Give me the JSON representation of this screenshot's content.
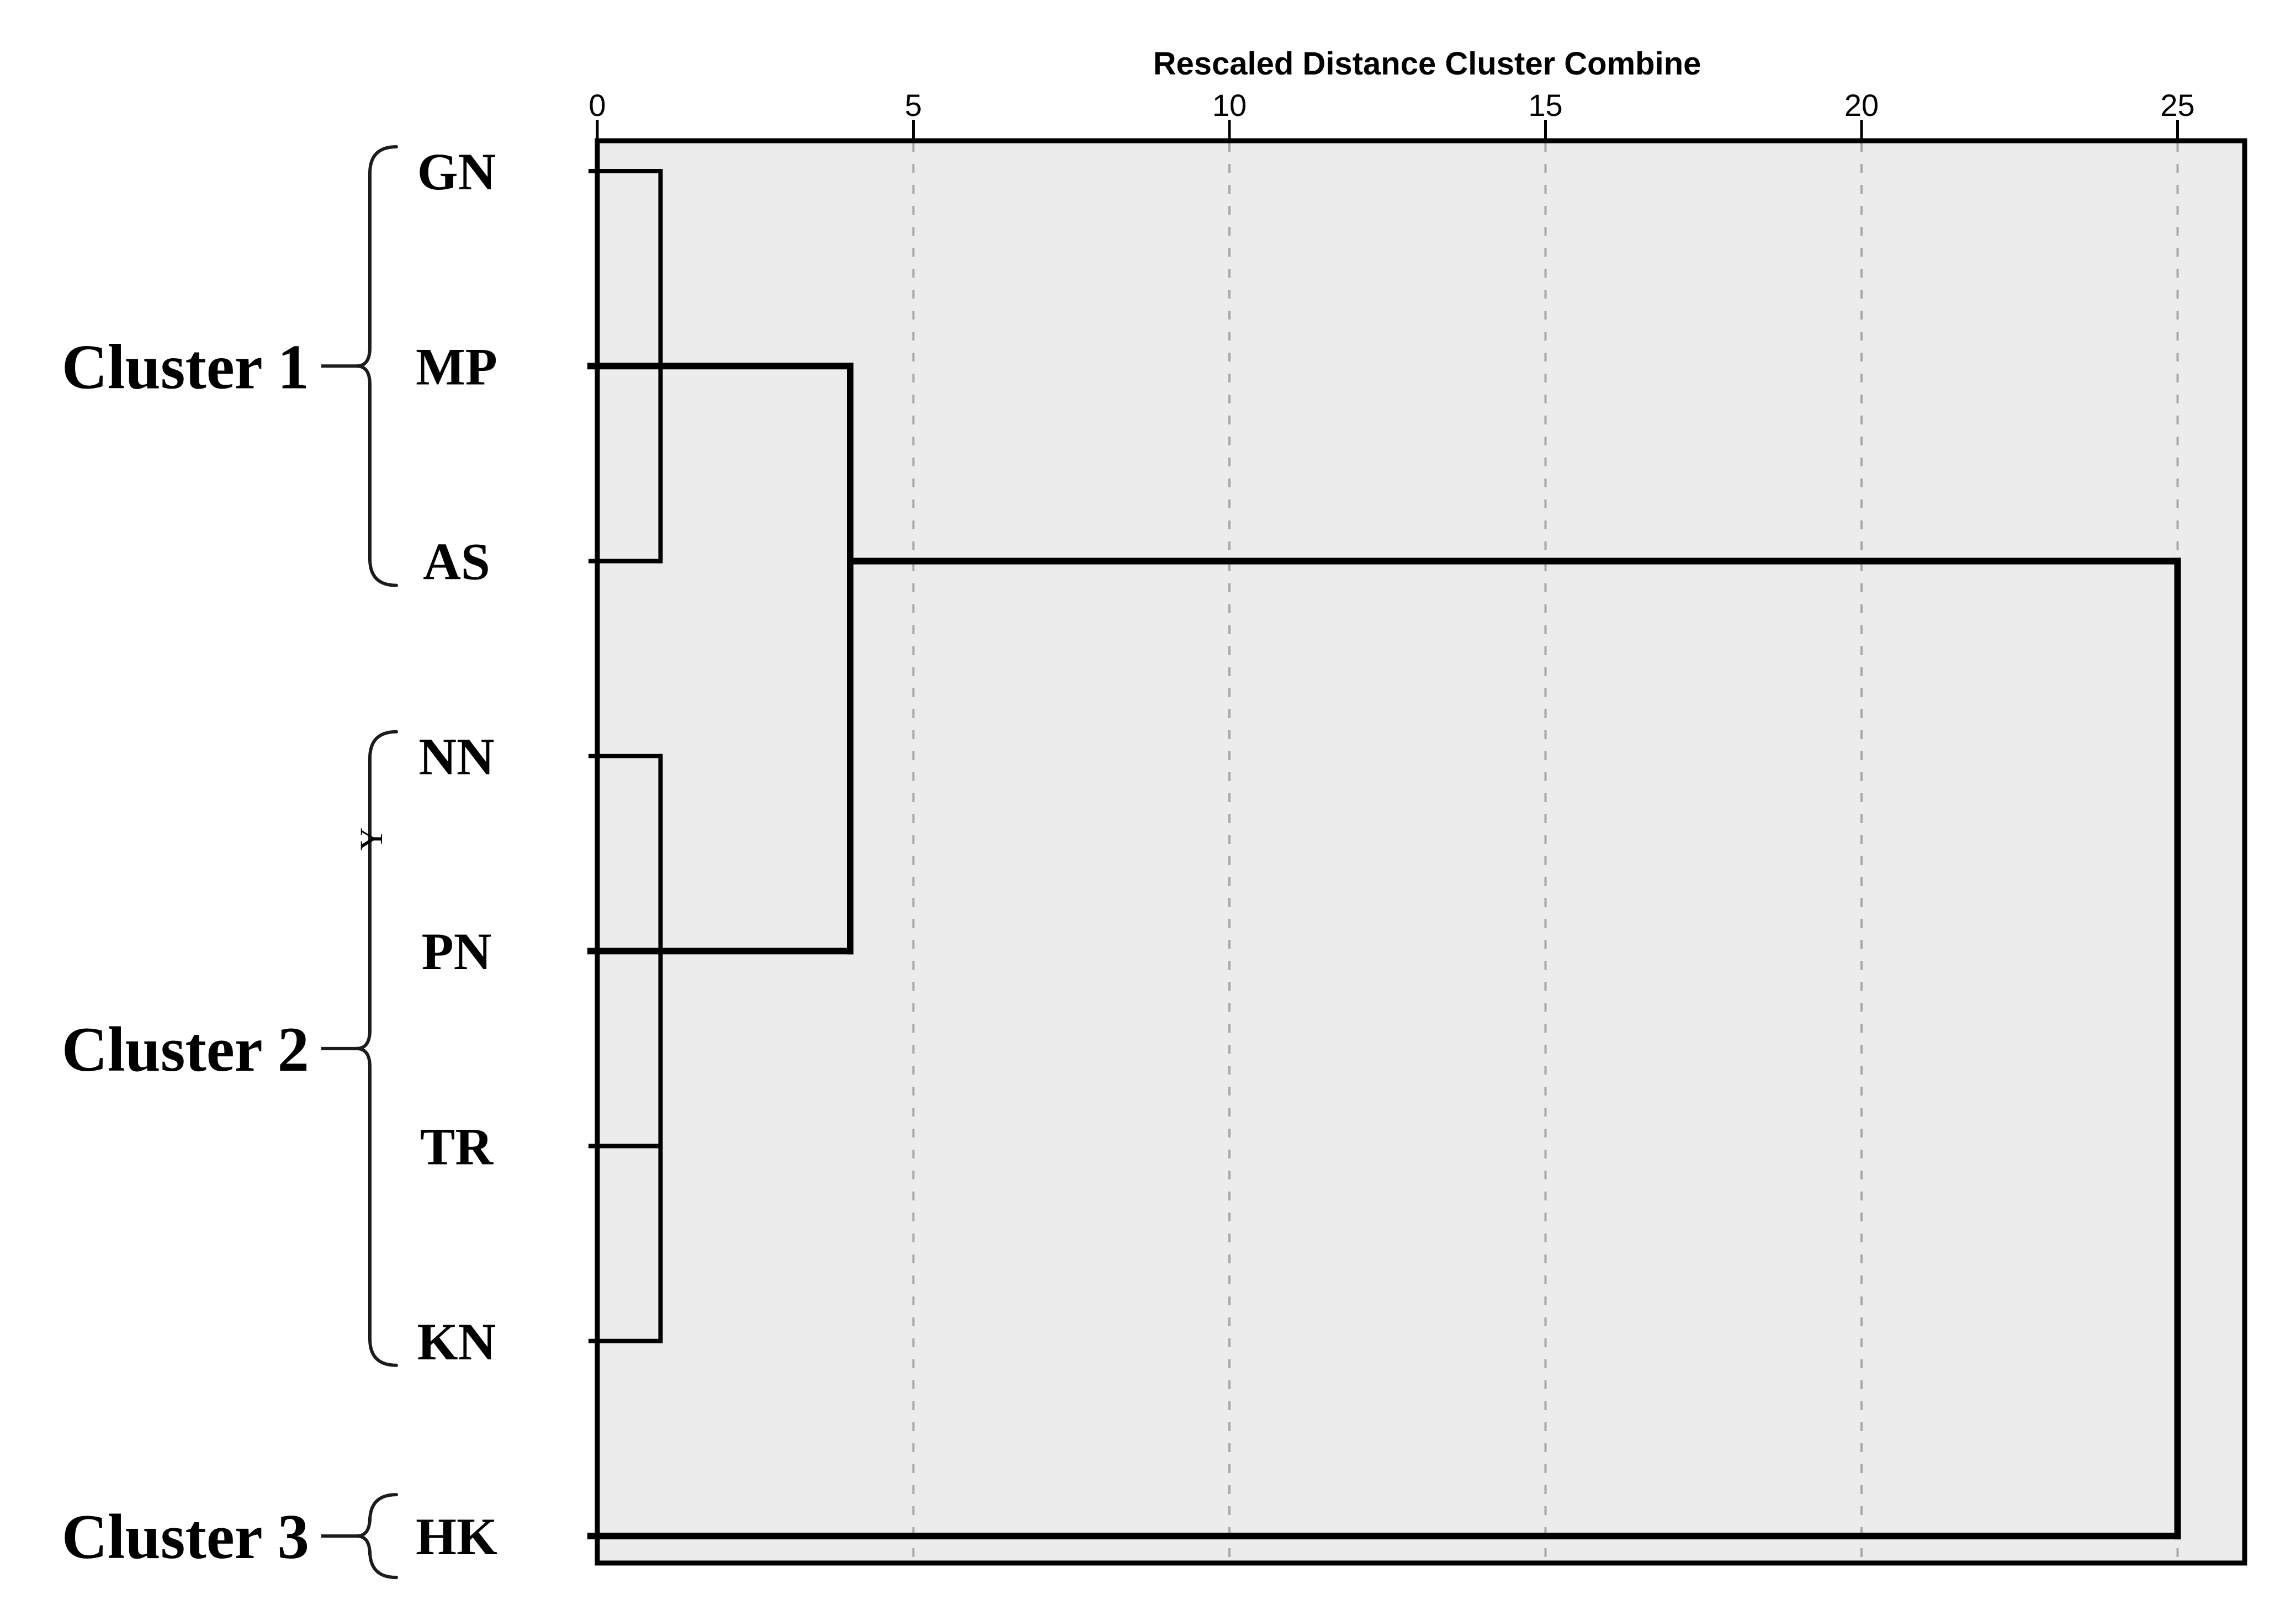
{
  "chart_data": {
    "type": "dendrogram",
    "title": "Rescaled Distance Cluster Combine",
    "x_range": [
      0,
      25
    ],
    "grid": "dashed vertical gridlines at 5, 10, 15, 20, 25",
    "axis_ticks": [
      {
        "value": 0,
        "label": "0"
      },
      {
        "value": 5,
        "label": "5"
      },
      {
        "value": 10,
        "label": "10"
      },
      {
        "value": 15,
        "label": "15"
      },
      {
        "value": 20,
        "label": "20"
      },
      {
        "value": 25,
        "label": "25"
      }
    ],
    "gridline_values": [
      5,
      10,
      15,
      20,
      25
    ],
    "leaves": [
      "GN",
      "MP",
      "AS",
      "NN",
      "PN",
      "TR",
      "KN",
      "HK"
    ],
    "clusters": [
      {
        "label": "Cluster 1",
        "first": 0,
        "last": 2,
        "members": [
          "GN",
          "MP",
          "AS"
        ]
      },
      {
        "label": "Cluster 2",
        "first": 3,
        "last": 6,
        "members": [
          "NN",
          "PN",
          "TR",
          "KN"
        ]
      },
      {
        "label": "Cluster 3",
        "first": 7,
        "last": 7,
        "members": [
          "HK"
        ]
      }
    ],
    "extra_label": "Y",
    "merges": [
      {
        "joins": [
          "GN",
          "MP"
        ],
        "rescaled_distance": 1
      },
      {
        "joins": [
          "GN+MP",
          "AS"
        ],
        "rescaled_distance": 1
      },
      {
        "joins": [
          "NN",
          "PN"
        ],
        "rescaled_distance": 1
      },
      {
        "joins": [
          "NN+PN",
          "TR"
        ],
        "rescaled_distance": 1
      },
      {
        "joins": [
          "NN+PN+TR",
          "KN"
        ],
        "rescaled_distance": 1
      },
      {
        "joins": [
          "Cluster 1",
          "Cluster 2"
        ],
        "rescaled_distance": 4
      },
      {
        "joins": [
          "Cluster 1+2",
          "HK"
        ],
        "rescaled_distance": 25
      }
    ],
    "segments": [
      {
        "type": "h",
        "row": 0,
        "x1": 0,
        "x2": 1,
        "w": 8
      },
      {
        "type": "h",
        "row": 1,
        "x1": 0,
        "x2": 4,
        "w": 12
      },
      {
        "type": "h",
        "row": 2,
        "x1": 0,
        "x2": 1,
        "w": 8
      },
      {
        "type": "h",
        "row": 2,
        "x1": 4,
        "x2": 25,
        "w": 12
      },
      {
        "type": "h",
        "row": 3,
        "x1": 0,
        "x2": 1,
        "w": 8
      },
      {
        "type": "h",
        "row": 4,
        "x1": 0,
        "x2": 4,
        "w": 12
      },
      {
        "type": "h",
        "row": 5,
        "x1": 0,
        "x2": 1,
        "w": 8
      },
      {
        "type": "h",
        "row": 6,
        "x1": 0,
        "x2": 1,
        "w": 8
      },
      {
        "type": "h",
        "row": 7,
        "x1": 0,
        "x2": 25,
        "w": 12
      },
      {
        "type": "v",
        "x": 1,
        "row1": 0,
        "row2": 2,
        "w": 8
      },
      {
        "type": "v",
        "x": 4,
        "row1": 1,
        "row2": 4,
        "w": 12
      },
      {
        "type": "v",
        "x": 1,
        "row1": 3,
        "row2": 6,
        "w": 8
      },
      {
        "type": "v",
        "x": 25,
        "row1": 2,
        "row2": 7,
        "w": 12
      }
    ],
    "colors": {
      "background": "#ffffff",
      "plot_background": "#ececec",
      "line": "#000000",
      "gridline": "#a8a8a8",
      "brace": "#1c1c1c"
    }
  }
}
